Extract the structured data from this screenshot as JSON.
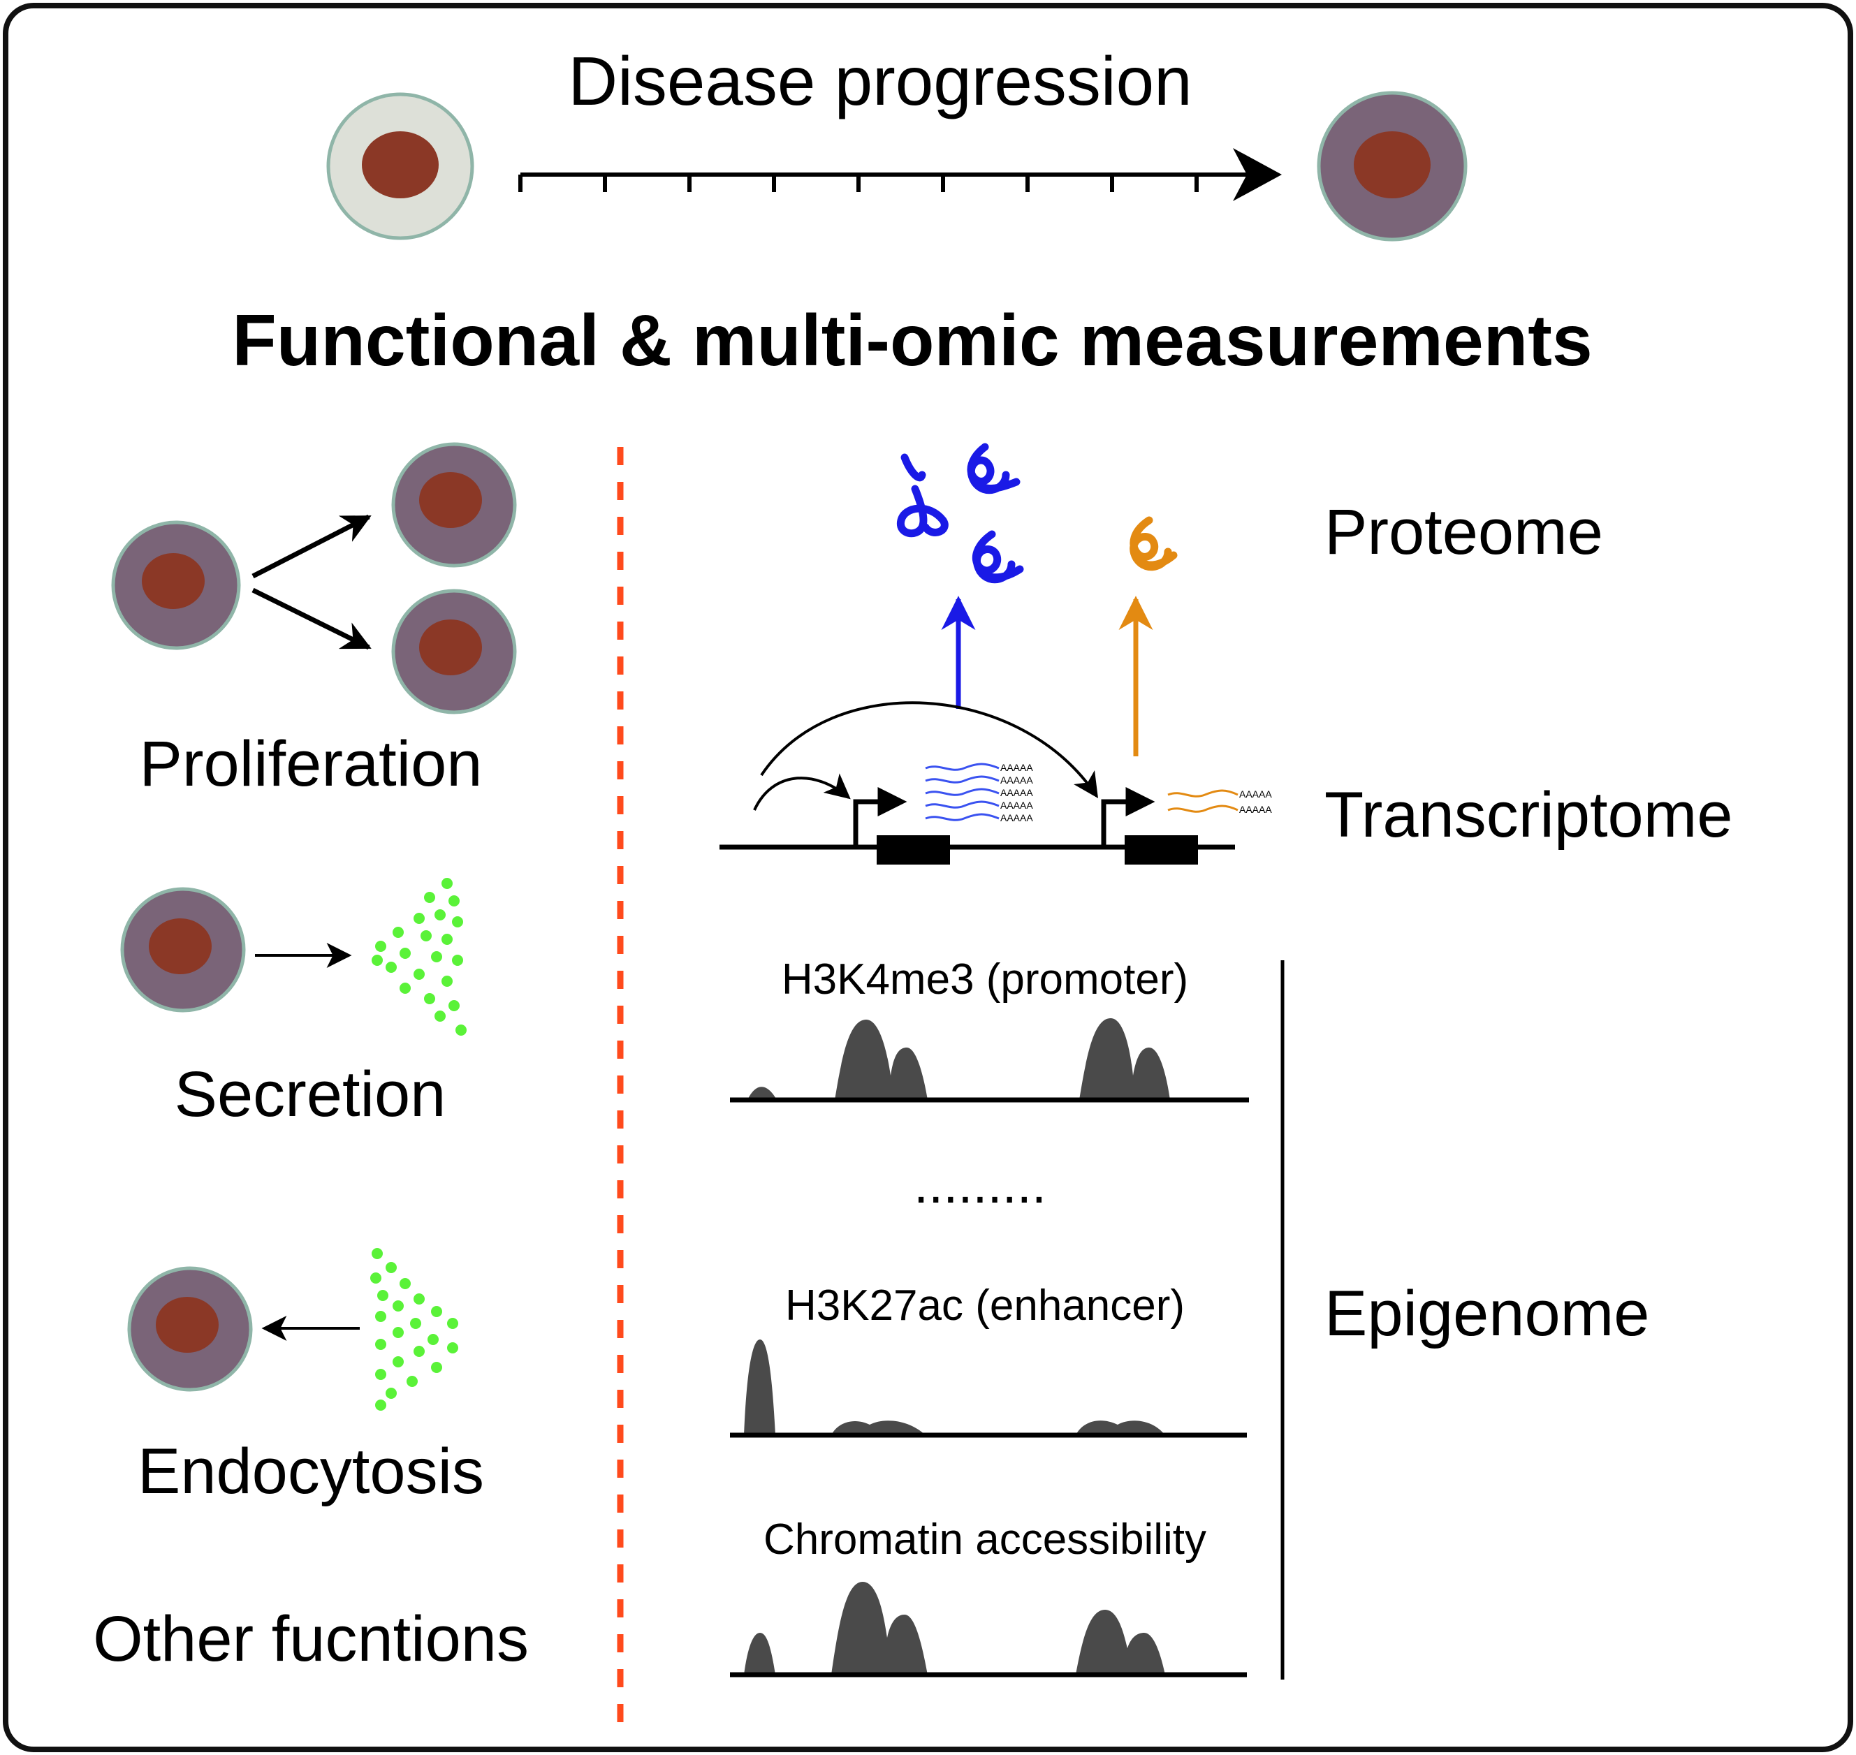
{
  "header": {
    "progression_label": "Disease progression",
    "section_title": "Functional & multi-omic measurements"
  },
  "functional": {
    "proliferation": "Proliferation",
    "secretion": "Secretion",
    "endocytosis": "Endocytosis",
    "other": "Other fucntions"
  },
  "omics": {
    "proteome": "Proteome",
    "transcriptome": "Transcriptome",
    "epigenome": "Epigenome",
    "polya_tail": "AAAAA"
  },
  "tracks": {
    "h3k4me3": "H3K4me3 (promoter)",
    "ellipsis": ".........",
    "h3k27ac": "H3K27ac (enhancer)",
    "chromatin": "Chromatin accessibility"
  },
  "colors": {
    "frame": "#111111",
    "cell_healthy": "#dde0d8",
    "cell_diseased": "#7a6478",
    "cell_border": "#8fb5a8",
    "nucleus": "#8b3826",
    "divider": "#ff4a1c",
    "protein_blue": "#1a1ae6",
    "protein_orange": "#e38a12",
    "secreted_dot": "#5af238",
    "peak_fill": "#4a4a4a"
  },
  "icons": {
    "cell": "cell-icon",
    "protein": "protein-coil-icon",
    "arrow": "arrow-icon"
  }
}
